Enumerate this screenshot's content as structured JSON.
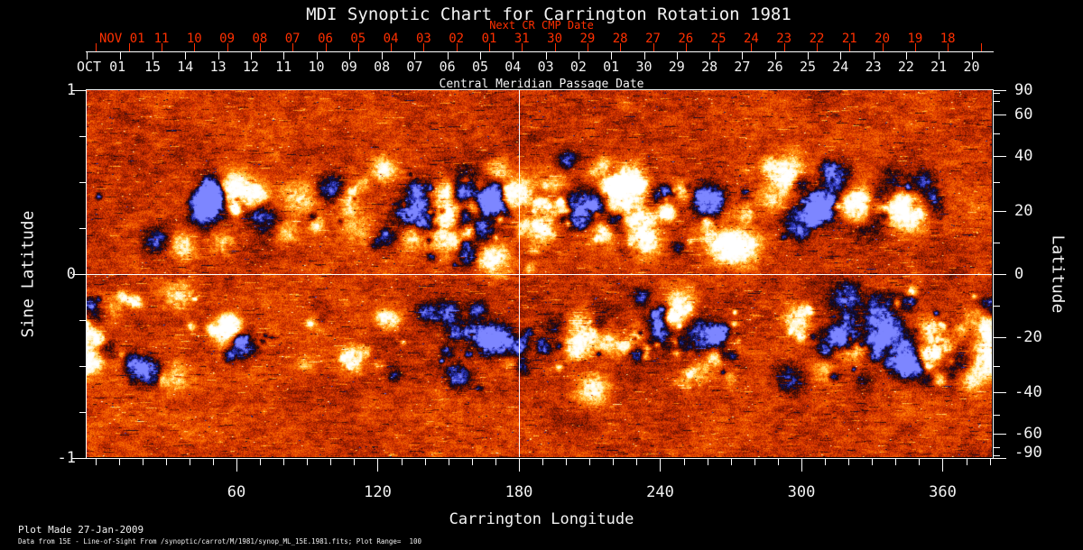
{
  "title": "MDI Synoptic Chart for Carrington Rotation 1981",
  "footer": {
    "line1": "Plot Made 27-Jan-2009",
    "line2": "Data from 15E - Line-of-Sight From /synoptic/carrot/M/1981/synop_ML_15E.1981.fits; Plot Range=  100"
  },
  "colors": {
    "background": "#000000",
    "foreground": "#ffffff",
    "next_cr_axis": "#ff3000",
    "map_base": "#d83200",
    "map_positive_extreme": "#ffffff",
    "map_negative_extreme": "#2e36c0",
    "reference_line": "#ffffff"
  },
  "chart_data": {
    "type": "heatmap",
    "title": "MDI Synoptic Chart for Carrington Rotation 1981",
    "xlabel": "Carrington Longitude",
    "ylabel_left": "Sine Latitude",
    "ylabel_right": "Latitude",
    "x_range_deg": [
      0,
      360
    ],
    "x_major_ticks": [
      60,
      120,
      180,
      240,
      300,
      360
    ],
    "x_minor_tick_step_deg": 10,
    "y_sine_range": [
      -1,
      1
    ],
    "y_sine_major_ticks": [
      "1",
      "0",
      "-1"
    ],
    "y_sine_major_values": [
      1,
      0,
      -1
    ],
    "y_sine_minor_values": [
      0.75,
      0.5,
      0.25,
      -0.25,
      -0.5,
      -0.75
    ],
    "right_axis_major_ticks": [
      "90",
      "60",
      "40",
      "20",
      "0",
      "-20",
      "-40",
      "-60",
      "-90"
    ],
    "right_axis_major_degrees": [
      90,
      60,
      40,
      20,
      0,
      -20,
      -40,
      -60,
      -90
    ],
    "right_axis_minor_degrees": [
      80,
      70,
      50,
      30,
      10,
      -10,
      -30,
      -50,
      -70,
      -80
    ],
    "value_range": [
      -100,
      100
    ],
    "grid": "off",
    "reference_lines": {
      "longitude_deg": 180,
      "sine_latitude": 0
    },
    "top_axes": {
      "next_cr": {
        "label": "Next CR CMP Date",
        "month": "NOV 01",
        "days": [
          "11",
          "10",
          "09",
          "08",
          "07",
          "06",
          "05",
          "04",
          "03",
          "02",
          "01",
          "31",
          "30",
          "29",
          "28",
          "27",
          "26",
          "25",
          "24",
          "23",
          "22",
          "21",
          "20",
          "19",
          "18"
        ]
      },
      "cmp": {
        "label": "Central Meridian Passage Date",
        "month": "OCT 01",
        "days": [
          "15",
          "14",
          "13",
          "12",
          "11",
          "10",
          "09",
          "08",
          "07",
          "06",
          "05",
          "04",
          "03",
          "02",
          "01",
          "30",
          "29",
          "28",
          "27",
          "26",
          "25",
          "24",
          "23",
          "22",
          "21",
          "20"
        ]
      }
    },
    "colormap": {
      "negative_stops": [
        [
          0,
          "#d83200"
        ],
        [
          0.3,
          "#7a1600"
        ],
        [
          0.55,
          "#16060a"
        ],
        [
          0.8,
          "#0e1048"
        ],
        [
          1.05,
          "#2e36c0"
        ],
        [
          1.45,
          "#7d86ff"
        ]
      ],
      "positive_stops": [
        [
          0,
          "#d83200"
        ],
        [
          0.32,
          "#ff7600"
        ],
        [
          0.62,
          "#ffc944"
        ],
        [
          0.95,
          "#fff6d0"
        ],
        [
          1.4,
          "#ffffff"
        ]
      ]
    }
  }
}
